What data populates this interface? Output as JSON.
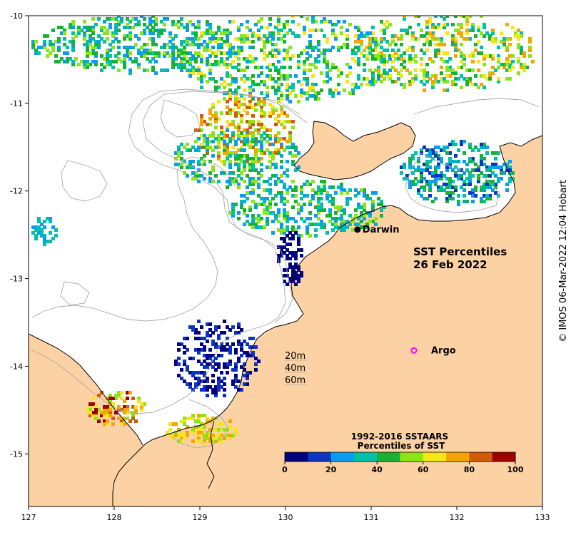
{
  "map": {
    "title_line1": "SST Percentiles",
    "title_line2": "26 Feb 2022",
    "credit": "© IMOS 06-Mar-2022 12:04 Hobart",
    "lon_range": [
      127,
      133
    ],
    "lat_range": [
      -15.6,
      -10
    ],
    "x_ticks": [
      "127",
      "128",
      "129",
      "130",
      "131",
      "132",
      "133"
    ],
    "y_ticks": [
      "-10",
      "-11",
      "-12",
      "-13",
      "-14",
      "-15"
    ],
    "places": [
      {
        "name": "Darwin",
        "lon": 130.84,
        "lat": -12.44,
        "marker": "dot"
      },
      {
        "name": "Argo",
        "lon": 131.5,
        "lat": -13.82,
        "marker": "ring"
      }
    ],
    "isobaths": [
      "20m",
      "40m",
      "60m"
    ]
  },
  "legend": {
    "title_line1": "1992-2016 SSTAARS",
    "title_line2": "Percentiles of SST",
    "ticks": [
      "0",
      "20",
      "40",
      "60",
      "80",
      "100"
    ],
    "colors": [
      "#000080",
      "#0a34c4",
      "#0a9cf0",
      "#00c0a8",
      "#14b432",
      "#8ce614",
      "#f5e614",
      "#f5a500",
      "#d25a0a",
      "#a00000"
    ]
  },
  "colors": {
    "land": "#fcd2a5",
    "ocean": "#ffffff",
    "contour": "#a8a8a8",
    "coast": "#000000",
    "argo": "#ff00ff"
  }
}
